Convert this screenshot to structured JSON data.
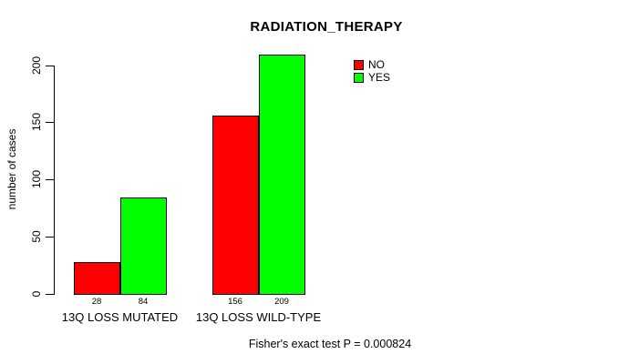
{
  "chart_data": {
    "type": "bar",
    "title": "RADIATION_THERAPY",
    "ylabel": "number of cases",
    "xlabel": "",
    "categories": [
      "13Q LOSS MUTATED",
      "13Q LOSS WILD-TYPE"
    ],
    "series": [
      {
        "name": "NO",
        "color": "#FF0000",
        "values": [
          28,
          156
        ]
      },
      {
        "name": "YES",
        "color": "#00FF00",
        "values": [
          84,
          209
        ]
      }
    ],
    "ylim": [
      0,
      200
    ],
    "yticks": [
      0,
      50,
      100,
      150,
      200
    ],
    "grid": false,
    "legend_position": "top-right",
    "bar_border_color": "#000000",
    "annotation": "Fisher's exact test P = 0.000824"
  }
}
